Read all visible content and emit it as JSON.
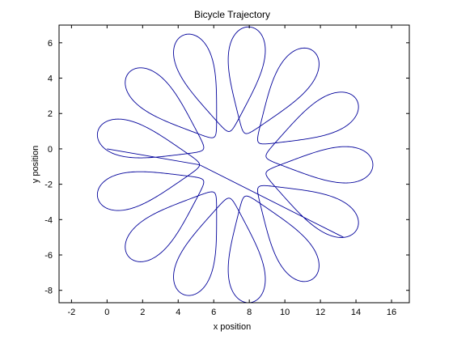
{
  "chart_data": {
    "type": "line",
    "title": "Bicycle Trajectory",
    "xlabel": "x position",
    "ylabel": "y position",
    "xlim": [
      -2.7,
      17.0
    ],
    "ylim": [
      -8.7,
      7.0
    ],
    "xticks": [
      -2,
      0,
      2,
      4,
      6,
      8,
      10,
      12,
      14,
      16
    ],
    "yticks": [
      -8,
      -6,
      -4,
      -2,
      0,
      2,
      4,
      6
    ],
    "grid": false,
    "colors": {
      "line": "#00009a",
      "axes": "#000000",
      "background": "#ffffff"
    },
    "series": [
      {
        "description_free": true,
        "curve": {
          "center": [
            7.1,
            -0.9
          ],
          "inner_radius": 1.9,
          "outer_radius": 7.85,
          "lobes": 13,
          "lobe_width": 2.2,
          "start": [
            0.0,
            0.0
          ],
          "end": [
            13.3,
            -5.0
          ]
        }
      }
    ]
  }
}
